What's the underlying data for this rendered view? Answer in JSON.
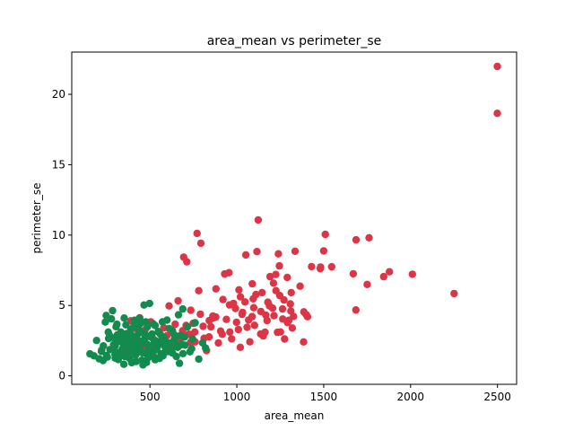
{
  "chart_data": {
    "type": "scatter",
    "title": "area_mean vs perimeter_se",
    "xlabel": "area_mean",
    "ylabel": "perimeter_se",
    "xlim": [
      50,
      2610
    ],
    "ylim": [
      -0.6,
      23.0
    ],
    "xticks": [
      500,
      1000,
      1500,
      2000,
      2500
    ],
    "yticks": [
      0,
      5,
      10,
      15,
      20
    ],
    "grid": false,
    "legend": "none",
    "series": [
      {
        "color": "#dc3545",
        "points": [
          [
            2499,
            21.98
          ],
          [
            2499,
            18.65
          ],
          [
            2250,
            5.85
          ],
          [
            2010,
            7.22
          ],
          [
            1878,
            7.39
          ],
          [
            1845,
            7.05
          ],
          [
            1761,
            9.81
          ],
          [
            1750,
            6.49
          ],
          [
            1686,
            9.66
          ],
          [
            1685,
            4.68
          ],
          [
            1670,
            7.25
          ],
          [
            1546,
            7.75
          ],
          [
            1509,
            10.05
          ],
          [
            1500,
            8.88
          ],
          [
            1482,
            7.73
          ],
          [
            1480,
            7.62
          ],
          [
            1430,
            7.76
          ],
          [
            1407,
            4.2
          ],
          [
            1386,
            4.55
          ],
          [
            1384,
            2.41
          ],
          [
            1364,
            6.37
          ],
          [
            1335,
            8.85
          ],
          [
            1319,
            3.4
          ],
          [
            1308,
            5.11
          ],
          [
            1299,
            3.95
          ],
          [
            1290,
            6.99
          ],
          [
            1275,
            2.62
          ],
          [
            1264,
            4.04
          ],
          [
            1247,
            5.71
          ],
          [
            1245,
            7.81
          ],
          [
            1239,
            8.67
          ],
          [
            1234,
            3.09
          ],
          [
            1224,
            7.2
          ],
          [
            1214,
            4.27
          ],
          [
            1206,
            4.81
          ],
          [
            1191,
            7.05
          ],
          [
            1174,
            3.93
          ],
          [
            1167,
            4.31
          ],
          [
            1152,
            2.84
          ],
          [
            1145,
            5.91
          ],
          [
            1138,
            4.57
          ],
          [
            1123,
            11.07
          ],
          [
            1116,
            8.83
          ],
          [
            1102,
            3.59
          ],
          [
            1094,
            5.47
          ],
          [
            1088,
            4.21
          ],
          [
            1075,
            2.42
          ],
          [
            1068,
            3.97
          ],
          [
            1052,
            8.59
          ],
          [
            1047,
            5.25
          ],
          [
            1030,
            4.37
          ],
          [
            1020,
            2.03
          ],
          [
            1009,
            3.29
          ],
          [
            992,
            4.79
          ],
          [
            981,
            5.15
          ],
          [
            970,
            2.63
          ],
          [
            960,
            3.11
          ],
          [
            940,
            4.01
          ],
          [
            930,
            7.24
          ],
          [
            920,
            5.42
          ],
          [
            907,
            3.18
          ],
          [
            894,
            2.34
          ],
          [
            880,
            6.18
          ],
          [
            864,
            4.11
          ],
          [
            851,
            3.48
          ],
          [
            840,
            2.77
          ],
          [
            826,
            1.79
          ],
          [
            806,
            3.52
          ],
          [
            793,
            9.42
          ],
          [
            781,
            6.05
          ],
          [
            771,
            10.12
          ],
          [
            760,
            2.41
          ],
          [
            749,
            3.73
          ],
          [
            735,
            4.66
          ],
          [
            725,
            2.96
          ],
          [
            712,
            8.1
          ],
          [
            694,
            8.43
          ],
          [
            688,
            3.21
          ],
          [
            677,
            2.19
          ],
          [
            662,
            5.33
          ],
          [
            645,
            3.67
          ],
          [
            628,
            1.95
          ],
          [
            610,
            4.97
          ],
          [
            598,
            2.85
          ],
          [
            580,
            3.42
          ],
          [
            565,
            2.37
          ],
          [
            551,
            3.09
          ],
          [
            535,
            2.04
          ],
          [
            520,
            2.61
          ],
          [
            505,
            3.84
          ],
          [
            489,
            2.18
          ],
          [
            472,
            3.27
          ],
          [
            458,
            1.96
          ],
          [
            441,
            4.12
          ],
          [
            420,
            3.35
          ],
          [
            405,
            2.73
          ],
          [
            390,
            3.91
          ],
          [
            370,
            1.68
          ],
          [
            1211,
            6.59
          ],
          [
            1263,
            4.75
          ],
          [
            1326,
            4.22
          ],
          [
            1162,
            3.1
          ],
          [
            1089,
            6.54
          ],
          [
            1033,
            4.51
          ],
          [
            1110,
            5.78
          ],
          [
            958,
            5.04
          ],
          [
            879,
            4.18
          ],
          [
            1188,
            4.97
          ],
          [
            998,
            3.81
          ],
          [
            916,
            2.95
          ],
          [
            955,
            7.33
          ],
          [
            1271,
            5.39
          ],
          [
            1292,
            3.78
          ],
          [
            862,
            4.25
          ],
          [
            1012,
            6.11
          ],
          [
            1059,
            3.45
          ],
          [
            1137,
            2.98
          ],
          [
            1179,
            5.23
          ],
          [
            1251,
            3.12
          ],
          [
            1311,
            4.61
          ],
          [
            734,
            2.38
          ],
          [
            758,
            3.11
          ],
          [
            790,
            4.38
          ],
          [
            812,
            2.67
          ],
          [
            841,
            3.92
          ],
          [
            708,
            3.58
          ],
          [
            685,
            2.72
          ],
          [
            656,
            2.49
          ],
          [
            630,
            3.06
          ],
          [
            615,
            2.15
          ],
          [
            1399,
            4.35
          ],
          [
            1097,
            4.84
          ],
          [
            1021,
            5.61
          ],
          [
            1225,
            6.05
          ],
          [
            1313,
            5.91
          ]
        ]
      },
      {
        "color": "#138a4e",
        "points": [
          [
            155,
            1.56
          ],
          [
            178,
            1.42
          ],
          [
            193,
            2.51
          ],
          [
            208,
            1.21
          ],
          [
            221,
            1.74
          ],
          [
            232,
            2.13
          ],
          [
            243,
            3.82
          ],
          [
            248,
            4.29
          ],
          [
            255,
            1.33
          ],
          [
            262,
            2.65
          ],
          [
            270,
            1.87
          ],
          [
            278,
            4.05
          ],
          [
            285,
            4.63
          ],
          [
            291,
            2.22
          ],
          [
            299,
            1.52
          ],
          [
            305,
            3.49
          ],
          [
            312,
            2.91
          ],
          [
            318,
            1.16
          ],
          [
            325,
            2.44
          ],
          [
            333,
            3.11
          ],
          [
            341,
            1.91
          ],
          [
            348,
            2.77
          ],
          [
            355,
            1.38
          ],
          [
            362,
            3.62
          ],
          [
            370,
            2.06
          ],
          [
            376,
            2.58
          ],
          [
            383,
            1.24
          ],
          [
            390,
            3.33
          ],
          [
            397,
            1.72
          ],
          [
            404,
            2.38
          ],
          [
            411,
            3.95
          ],
          [
            418,
            1.48
          ],
          [
            425,
            2.86
          ],
          [
            432,
            1.94
          ],
          [
            439,
            4.08
          ],
          [
            446,
            2.31
          ],
          [
            453,
            1.11
          ],
          [
            459,
            3.05
          ],
          [
            466,
            5.03
          ],
          [
            472,
            2.68
          ],
          [
            479,
            1.57
          ],
          [
            485,
            3.48
          ],
          [
            492,
            2.12
          ],
          [
            498,
            5.15
          ],
          [
            505,
            1.84
          ],
          [
            512,
            2.97
          ],
          [
            519,
            3.69
          ],
          [
            526,
            1.33
          ],
          [
            533,
            2.49
          ],
          [
            540,
            1.99
          ],
          [
            548,
            3.15
          ],
          [
            556,
            2.26
          ],
          [
            564,
            1.56
          ],
          [
            572,
            3.83
          ],
          [
            580,
            2.74
          ],
          [
            589,
            1.72
          ],
          [
            598,
            3.96
          ],
          [
            608,
            2.34
          ],
          [
            618,
            1.91
          ],
          [
            629,
            3.23
          ],
          [
            640,
            2.59
          ],
          [
            652,
            1.38
          ],
          [
            664,
            4.34
          ],
          [
            676,
            2.87
          ],
          [
            689,
            4.75
          ],
          [
            702,
            2.18
          ],
          [
            716,
            3.48
          ],
          [
            730,
            1.71
          ],
          [
            745,
            2.63
          ],
          [
            760,
            3.77
          ],
          [
            781,
            1.19
          ],
          [
            803,
            2.34
          ],
          [
            820,
            1.98
          ],
          [
            230,
            1.09
          ],
          [
            260,
            3.11
          ],
          [
            287,
            1.94
          ],
          [
            296,
            2.68
          ],
          [
            310,
            3.67
          ],
          [
            338,
            2.39
          ],
          [
            352,
            4.11
          ],
          [
            367,
            3.01
          ],
          [
            380,
            1.62
          ],
          [
            395,
            2.88
          ],
          [
            408,
            3.52
          ],
          [
            421,
            2.04
          ],
          [
            436,
            3.29
          ],
          [
            449,
            1.79
          ],
          [
            462,
            2.52
          ],
          [
            476,
            3.84
          ],
          [
            489,
            1.29
          ],
          [
            503,
            2.77
          ],
          [
            516,
            1.68
          ],
          [
            530,
            3.57
          ],
          [
            545,
            2.15
          ],
          [
            560,
            2.95
          ],
          [
            575,
            1.42
          ],
          [
            592,
            2.41
          ],
          [
            610,
            3.36
          ],
          [
            630,
            1.62
          ],
          [
            650,
            2.23
          ],
          [
            670,
            0.89
          ],
          [
            690,
            1.58
          ],
          [
            350,
            0.82
          ],
          [
            420,
            1.02
          ],
          [
            480,
            0.95
          ],
          [
            530,
            1.15
          ],
          [
            460,
            0.78
          ],
          [
            395,
            0.94
          ],
          [
            300,
            1.26
          ],
          [
            250,
            1.45
          ],
          [
            222,
            1.83
          ],
          [
            268,
            2.87
          ],
          [
            322,
            1.67
          ],
          [
            357,
            2.18
          ],
          [
            372,
            1.39
          ],
          [
            445,
            3.71
          ],
          [
            470,
            2.97
          ],
          [
            495,
            1.86
          ],
          [
            525,
            2.34
          ],
          [
            555,
            1.24
          ],
          [
            585,
            2.09
          ],
          [
            620,
            1.89
          ],
          [
            660,
            2.03
          ],
          [
            700,
            2.76
          ],
          [
            740,
            1.93
          ],
          [
            300,
            2.13
          ],
          [
            312,
            1.29
          ],
          [
            328,
            2.58
          ],
          [
            345,
            1.47
          ],
          [
            388,
            2.16
          ],
          [
            402,
            1.83
          ],
          [
            431,
            2.52
          ],
          [
            456,
            1.64
          ],
          [
            484,
            2.24
          ],
          [
            510,
            1.46
          ],
          [
            538,
            1.87
          ],
          [
            568,
            2.56
          ],
          [
            604,
            1.72
          ],
          [
            641,
            2.91
          ],
          [
            681,
            2.24
          ]
        ]
      }
    ]
  }
}
